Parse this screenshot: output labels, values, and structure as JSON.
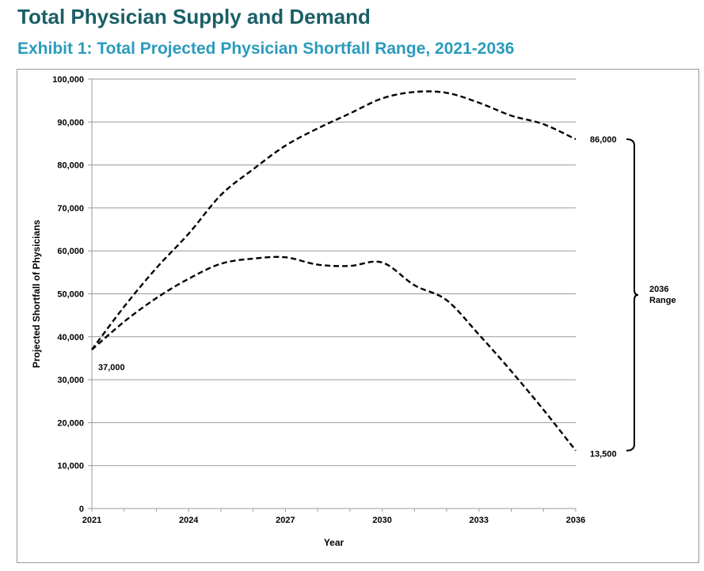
{
  "header": {
    "title": "Total Physician Supply and Demand",
    "exhibit_title": "Exhibit 1: Total Projected Physician Shortfall Range, 2021-2036"
  },
  "colors": {
    "title": "#1b5f66",
    "exhibit_title": "#2a9bbd",
    "line": "#000000",
    "grid": "#9a9a9a"
  },
  "chart_data": {
    "type": "line",
    "title": "Exhibit 1: Total Projected Physician Shortfall Range, 2021-2036",
    "xlabel": "Year",
    "ylabel": "Projected Shortfall of Physicians",
    "xlim": [
      2021,
      2036
    ],
    "ylim": [
      0,
      100000
    ],
    "x_ticks": [
      2021,
      2024,
      2027,
      2030,
      2033,
      2036
    ],
    "x_tick_labels": [
      "2021",
      "2024",
      "2027",
      "2030",
      "2033",
      "2036"
    ],
    "y_ticks": [
      0,
      10000,
      20000,
      30000,
      40000,
      50000,
      60000,
      70000,
      80000,
      90000,
      100000
    ],
    "y_tick_labels": [
      "0",
      "10,000",
      "20,000",
      "30,000",
      "40,000",
      "50,000",
      "60,000",
      "70,000",
      "80,000",
      "90,000",
      "100,000"
    ],
    "grid": "horizontal",
    "legend": "none",
    "line_style": "dashed",
    "x": [
      2021,
      2022,
      2023,
      2024,
      2025,
      2026,
      2027,
      2028,
      2029,
      2030,
      2031,
      2032,
      2033,
      2034,
      2035,
      2036
    ],
    "series": [
      {
        "values": [
          37000,
          47000,
          56000,
          64000,
          73000,
          79000,
          84500,
          88500,
          92000,
          95500,
          97000,
          96800,
          94500,
          91500,
          89500,
          86000
        ]
      },
      {
        "values": [
          37000,
          43500,
          49000,
          53500,
          57000,
          58200,
          58500,
          56800,
          56500,
          57300,
          52000,
          48500,
          40500,
          32000,
          23000,
          13500
        ]
      }
    ],
    "annotations": [
      {
        "text": "37,000",
        "x": 2021,
        "y": 37000
      },
      {
        "text": "86,000",
        "x": 2036,
        "y": 86000
      },
      {
        "text": "13,500",
        "x": 2036,
        "y": 13500
      }
    ],
    "range_label": [
      "2036",
      "Range"
    ]
  }
}
